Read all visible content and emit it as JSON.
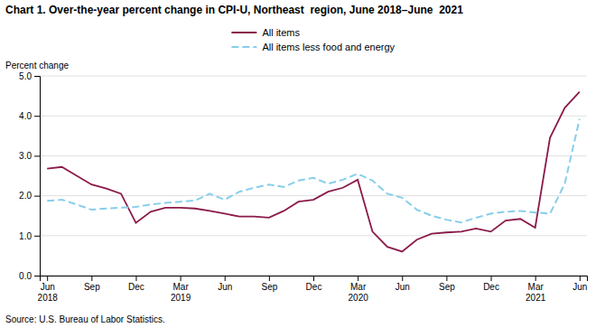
{
  "chart_data": {
    "type": "line",
    "title": "Chart 1. Over-the-year percent change in CPI-U, Northeast  region, June 2018–June  2021",
    "ylabel": "Percent change",
    "annotations": [
      "Source: U.S. Bureau of Labor Statistics."
    ],
    "categories": [
      "Jun\n2018",
      null,
      null,
      "Sep",
      null,
      null,
      "Dec",
      null,
      null,
      "Mar\n2019",
      null,
      null,
      "Jun",
      null,
      null,
      "Sep",
      null,
      null,
      "Dec",
      null,
      null,
      "Mar\n2020",
      null,
      null,
      "Jun",
      null,
      null,
      "Sep",
      null,
      null,
      "Dec",
      null,
      null,
      "Mar\n2021",
      null,
      null,
      "Jun"
    ],
    "series": [
      {
        "name": "All items",
        "color": "#8B1A4A",
        "line_style": "solid",
        "values": [
          2.68,
          2.72,
          2.5,
          2.28,
          2.18,
          2.05,
          1.32,
          1.6,
          1.7,
          1.7,
          1.68,
          1.62,
          1.55,
          1.48,
          1.48,
          1.45,
          1.62,
          1.85,
          1.9,
          2.1,
          2.2,
          2.4,
          1.1,
          0.72,
          0.6,
          0.9,
          1.05,
          1.08,
          1.1,
          1.18,
          1.1,
          1.38,
          1.42,
          1.2,
          3.45,
          4.2,
          4.6
        ]
      },
      {
        "name": "All items less food and energy",
        "color": "#87CEEB",
        "line_style": "dashed",
        "values": [
          1.87,
          1.9,
          1.78,
          1.65,
          1.68,
          1.7,
          1.72,
          1.78,
          1.82,
          1.85,
          1.88,
          2.05,
          1.9,
          2.1,
          2.2,
          2.28,
          2.22,
          2.38,
          2.45,
          2.3,
          2.4,
          2.55,
          2.38,
          2.05,
          1.95,
          1.65,
          1.5,
          1.4,
          1.33,
          1.45,
          1.55,
          1.6,
          1.62,
          1.58,
          1.55,
          2.3,
          3.92
        ]
      }
    ],
    "ylim": [
      0.0,
      5.0
    ],
    "yticks": [
      {
        "value": 0,
        "label": "0.0"
      },
      {
        "value": 1,
        "label": "1.0"
      },
      {
        "value": 2,
        "label": "2.0"
      },
      {
        "value": 3,
        "label": "3.0"
      },
      {
        "value": 4,
        "label": "4.0"
      },
      {
        "value": 5,
        "label": "5.0"
      }
    ],
    "grid": true,
    "legend": "top"
  }
}
